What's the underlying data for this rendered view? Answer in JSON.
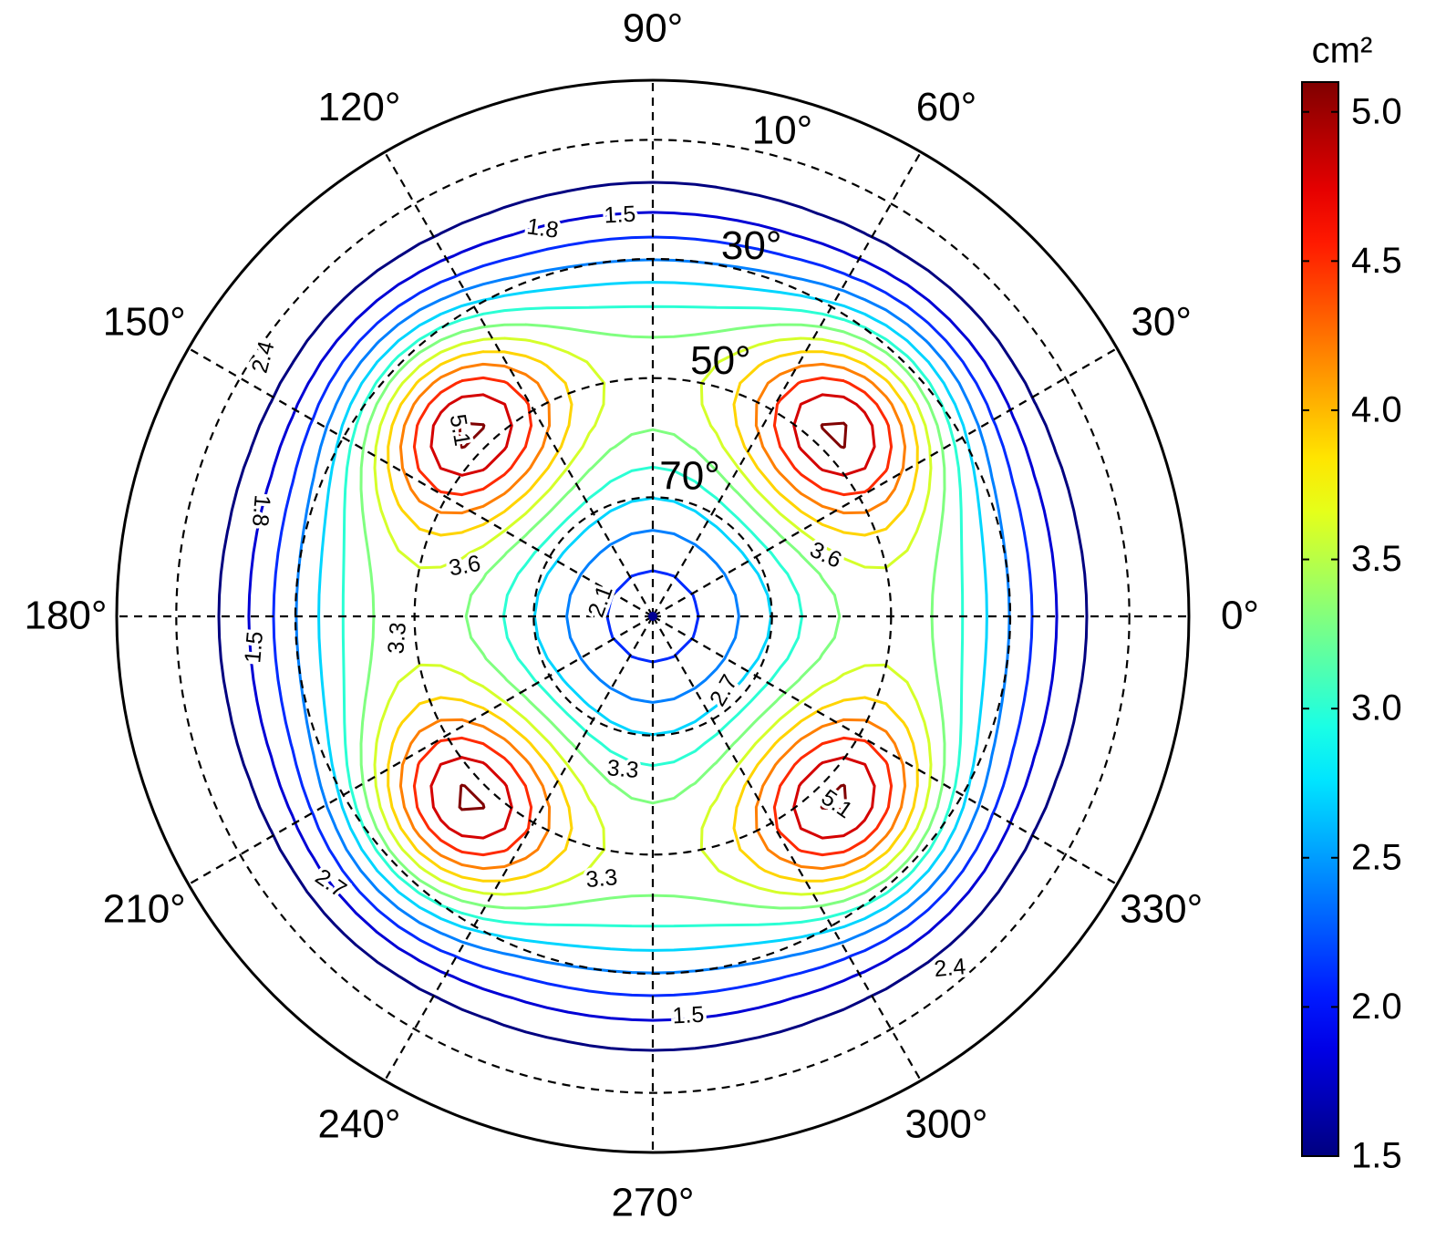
{
  "chart_data": {
    "type": "polar_contour",
    "unit": "cm²",
    "theta_ticks": [
      {
        "value": 0,
        "label": "0°"
      },
      {
        "value": 30,
        "label": "30°"
      },
      {
        "value": 60,
        "label": "60°"
      },
      {
        "value": 90,
        "label": "90°"
      },
      {
        "value": 120,
        "label": "120°"
      },
      {
        "value": 150,
        "label": "150°"
      },
      {
        "value": 180,
        "label": "180°"
      },
      {
        "value": 210,
        "label": "210°"
      },
      {
        "value": 240,
        "label": "240°"
      },
      {
        "value": 270,
        "label": "270°"
      },
      {
        "value": 300,
        "label": "300°"
      },
      {
        "value": 330,
        "label": "330°"
      }
    ],
    "rlim": [
      90,
      0
    ],
    "rticks": [
      {
        "value": 10,
        "label": "10°"
      },
      {
        "value": 30,
        "label": "30°"
      },
      {
        "value": 50,
        "label": "50°"
      },
      {
        "value": 70,
        "label": "70°"
      }
    ],
    "levels": [
      1.5,
      1.8,
      2.1,
      2.4,
      2.7,
      3.0,
      3.3,
      3.6,
      3.9,
      4.2,
      4.5,
      4.8,
      5.1
    ],
    "colormap": "jet",
    "clim": [
      1.5,
      5.1
    ],
    "cticks": [
      1.5,
      {
        "value": 2,
        "label": "2.0"
      },
      2.5,
      {
        "value": 3,
        "label": "3.0"
      },
      3.5,
      {
        "value": 4,
        "label": "4.0"
      },
      4.5,
      {
        "value": 5,
        "label": "5.0"
      }
    ],
    "grid": true
  }
}
